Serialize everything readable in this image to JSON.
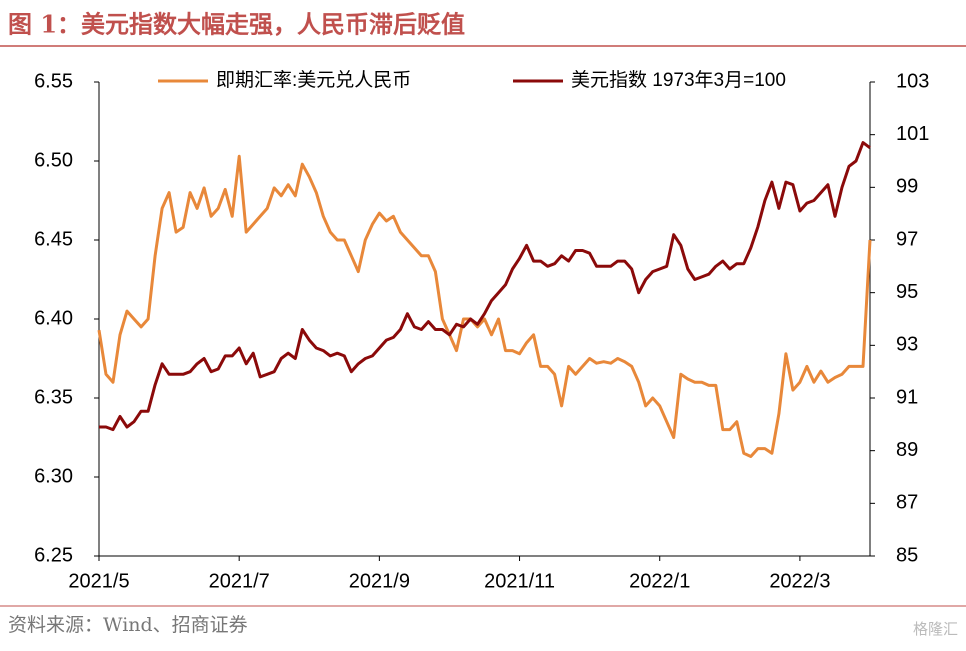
{
  "chart_data": {
    "type": "line",
    "title": "图 1：美元指数大幅走强，人民币滞后贬值",
    "source": "资料来源：Wind、招商证券",
    "watermark": "格隆汇",
    "categories": [
      "2021/5",
      null,
      null,
      null,
      null,
      null,
      null,
      null,
      null,
      null,
      null,
      null,
      null,
      null,
      null,
      null,
      null,
      null,
      null,
      null,
      "2021/7",
      null,
      null,
      null,
      null,
      null,
      null,
      null,
      null,
      null,
      null,
      null,
      null,
      null,
      null,
      null,
      null,
      null,
      null,
      null,
      "2021/9",
      null,
      null,
      null,
      null,
      null,
      null,
      null,
      null,
      null,
      null,
      null,
      null,
      null,
      null,
      null,
      null,
      null,
      null,
      null,
      "2021/11",
      null,
      null,
      null,
      null,
      null,
      null,
      null,
      null,
      null,
      null,
      null,
      null,
      null,
      null,
      null,
      null,
      null,
      null,
      null,
      "2022/1",
      null,
      null,
      null,
      null,
      null,
      null,
      null,
      null,
      null,
      null,
      null,
      null,
      null,
      null,
      null,
      null,
      null,
      null,
      null,
      "2022/3",
      null,
      null,
      null,
      null,
      null,
      null,
      null,
      null,
      null,
      null
    ],
    "series": [
      {
        "name": "即期汇率:美元兑人民币",
        "color": "#E8883A",
        "axis": "y",
        "values": [
          6.393,
          6.365,
          6.36,
          6.39,
          6.405,
          6.4,
          6.395,
          6.4,
          6.44,
          6.47,
          6.48,
          6.455,
          6.458,
          6.48,
          6.47,
          6.483,
          6.465,
          6.47,
          6.482,
          6.465,
          6.503,
          6.455,
          6.46,
          6.465,
          6.47,
          6.483,
          6.478,
          6.485,
          6.478,
          6.498,
          6.49,
          6.48,
          6.465,
          6.455,
          6.45,
          6.45,
          6.44,
          6.43,
          6.45,
          6.46,
          6.467,
          6.462,
          6.465,
          6.455,
          6.45,
          6.445,
          6.44,
          6.44,
          6.43,
          6.4,
          6.39,
          6.38,
          6.4,
          6.4,
          6.395,
          6.4,
          6.39,
          6.4,
          6.38,
          6.38,
          6.378,
          6.385,
          6.39,
          6.37,
          6.37,
          6.365,
          6.345,
          6.37,
          6.365,
          6.37,
          6.375,
          6.372,
          6.373,
          6.372,
          6.375,
          6.373,
          6.37,
          6.36,
          6.345,
          6.35,
          6.345,
          6.335,
          6.325,
          6.365,
          6.362,
          6.36,
          6.36,
          6.358,
          6.358,
          6.33,
          6.33,
          6.335,
          6.315,
          6.313,
          6.318,
          6.318,
          6.315,
          6.34,
          6.378,
          6.355,
          6.36,
          6.37,
          6.36,
          6.367,
          6.36,
          6.363,
          6.365,
          6.37,
          6.37,
          6.37,
          6.45
        ]
      },
      {
        "name": "美元指数 1973年3月=100",
        "color": "#8B0A0A",
        "axis": "y2",
        "values": [
          89.9,
          89.9,
          89.8,
          90.3,
          89.9,
          90.1,
          90.5,
          90.5,
          91.5,
          92.3,
          91.9,
          91.9,
          91.9,
          92.0,
          92.3,
          92.5,
          92.0,
          92.1,
          92.6,
          92.6,
          92.9,
          92.3,
          92.7,
          91.8,
          91.9,
          92.0,
          92.5,
          92.7,
          92.5,
          93.6,
          93.2,
          92.9,
          92.8,
          92.6,
          92.7,
          92.6,
          92.0,
          92.3,
          92.5,
          92.6,
          92.9,
          93.2,
          93.3,
          93.6,
          94.2,
          93.7,
          93.6,
          93.9,
          93.6,
          93.6,
          93.4,
          93.8,
          93.7,
          94.0,
          93.8,
          94.2,
          94.7,
          95.0,
          95.3,
          95.9,
          96.3,
          96.8,
          96.2,
          96.2,
          96.0,
          96.1,
          96.4,
          96.2,
          96.6,
          96.6,
          96.5,
          96.0,
          96.0,
          96.0,
          96.2,
          96.2,
          95.9,
          95.0,
          95.5,
          95.8,
          95.9,
          96.0,
          97.2,
          96.8,
          95.9,
          95.5,
          95.6,
          95.7,
          96.0,
          96.2,
          95.9,
          96.1,
          96.1,
          96.7,
          97.5,
          98.5,
          99.2,
          98.2,
          99.2,
          99.1,
          98.1,
          98.4,
          98.5,
          98.8,
          99.1,
          97.9,
          99.0,
          99.8,
          100.0,
          100.7,
          100.5
        ]
      }
    ],
    "ylim": [
      6.25,
      6.55
    ],
    "yticks": [
      6.25,
      {
        "value": 6.3,
        "label": "6.30"
      },
      6.35,
      {
        "value": 6.4,
        "label": "6.40"
      },
      6.45,
      {
        "value": 6.5,
        "label": "6.50"
      },
      6.55
    ],
    "y2lim": [
      85,
      103
    ],
    "y2ticks": [
      85,
      87,
      89,
      91,
      93,
      95,
      97,
      99,
      101,
      103
    ],
    "grid": false
  }
}
